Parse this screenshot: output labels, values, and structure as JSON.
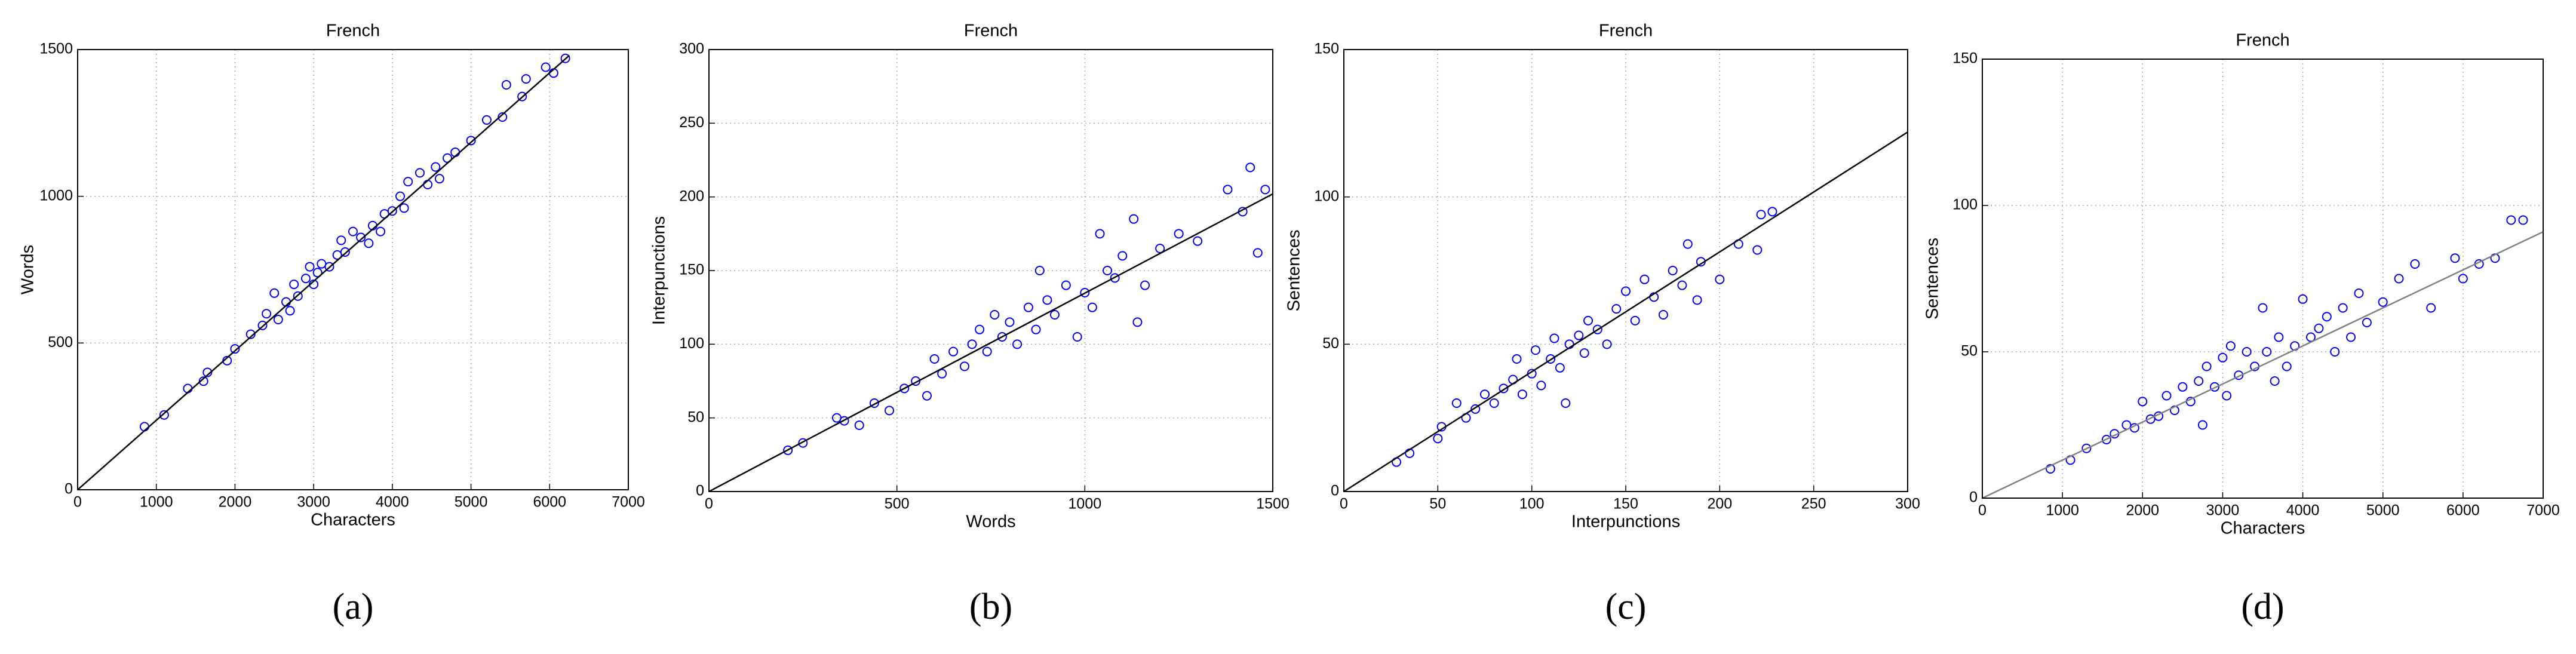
{
  "chart_data": [
    {
      "type": "scatter",
      "title": "French",
      "xlabel": "Characters",
      "ylabel": "Words",
      "panel_label": "(a)",
      "xlim": [
        0,
        7000
      ],
      "ylim": [
        0,
        1500
      ],
      "xticks": [
        0,
        1000,
        2000,
        3000,
        4000,
        5000,
        6000,
        7000
      ],
      "yticks": [
        0,
        500,
        1000,
        1500
      ],
      "grid": true,
      "series": [
        {
          "color": "#0000ff",
          "x": [
            850,
            1100,
            1400,
            1600,
            1650,
            1900,
            2000,
            2200,
            2350,
            2400,
            2500,
            2550,
            2650,
            2700,
            2750,
            2800,
            2900,
            2950,
            3000,
            3050,
            3100,
            3200,
            3300,
            3350,
            3400,
            3500,
            3600,
            3700,
            3750,
            3850,
            3900,
            4000,
            4100,
            4150,
            4200,
            4350,
            4450,
            4550,
            4600,
            4700,
            4800,
            5000,
            5200,
            5400,
            5450,
            5650,
            5700,
            5950,
            6050,
            6200
          ],
          "y": [
            215,
            255,
            345,
            370,
            400,
            440,
            480,
            530,
            560,
            600,
            670,
            580,
            640,
            610,
            700,
            660,
            720,
            760,
            700,
            740,
            770,
            760,
            800,
            850,
            810,
            880,
            860,
            840,
            900,
            880,
            940,
            950,
            1000,
            960,
            1050,
            1080,
            1040,
            1100,
            1060,
            1130,
            1150,
            1190,
            1260,
            1270,
            1380,
            1340,
            1400,
            1440,
            1420,
            1470
          ]
        },
        {
          "type": "line",
          "color": "#000000",
          "x": [
            0,
            6250
          ],
          "y": [
            0,
            1480
          ]
        }
      ]
    },
    {
      "type": "scatter",
      "title": "French",
      "xlabel": "Words",
      "ylabel": "Interpunctions",
      "panel_label": "(b)",
      "xlim": [
        0,
        1500
      ],
      "ylim": [
        0,
        300
      ],
      "xticks": [
        0,
        500,
        1000,
        1500
      ],
      "yticks": [
        0,
        50,
        100,
        150,
        200,
        250,
        300
      ],
      "grid": true,
      "series": [
        {
          "color": "#0000ff",
          "x": [
            210,
            250,
            340,
            360,
            400,
            440,
            480,
            520,
            550,
            580,
            600,
            620,
            650,
            680,
            700,
            720,
            740,
            760,
            780,
            800,
            820,
            850,
            870,
            880,
            900,
            920,
            950,
            980,
            1000,
            1020,
            1040,
            1060,
            1080,
            1100,
            1130,
            1140,
            1160,
            1200,
            1250,
            1300,
            1380,
            1420,
            1440,
            1460,
            1480
          ],
          "y": [
            28,
            33,
            50,
            48,
            45,
            60,
            55,
            70,
            75,
            65,
            90,
            80,
            95,
            85,
            100,
            110,
            95,
            120,
            105,
            115,
            100,
            125,
            110,
            150,
            130,
            120,
            140,
            105,
            135,
            125,
            175,
            150,
            145,
            160,
            185,
            115,
            140,
            165,
            175,
            170,
            205,
            190,
            220,
            162,
            205
          ]
        },
        {
          "type": "line",
          "color": "#000000",
          "x": [
            0,
            1500
          ],
          "y": [
            0,
            202
          ]
        }
      ]
    },
    {
      "type": "scatter",
      "title": "French",
      "xlabel": "Interpunctions",
      "ylabel": "Sentences",
      "panel_label": "(c)",
      "xlim": [
        0,
        300
      ],
      "ylim": [
        0,
        150
      ],
      "xticks": [
        0,
        50,
        100,
        150,
        200,
        250,
        300
      ],
      "yticks": [
        0,
        50,
        100,
        150
      ],
      "grid": true,
      "series": [
        {
          "color": "#0000ff",
          "x": [
            28,
            35,
            50,
            52,
            60,
            65,
            70,
            75,
            80,
            85,
            90,
            92,
            95,
            100,
            102,
            105,
            110,
            112,
            115,
            118,
            120,
            125,
            128,
            130,
            135,
            140,
            145,
            150,
            155,
            160,
            165,
            170,
            175,
            180,
            183,
            188,
            190,
            200,
            210,
            220,
            222,
            228
          ],
          "y": [
            10,
            13,
            18,
            22,
            30,
            25,
            28,
            33,
            30,
            35,
            38,
            45,
            33,
            40,
            48,
            36,
            45,
            52,
            42,
            30,
            50,
            53,
            47,
            58,
            55,
            50,
            62,
            68,
            58,
            72,
            66,
            60,
            75,
            70,
            84,
            65,
            78,
            72,
            84,
            82,
            94,
            95
          ]
        },
        {
          "type": "line",
          "color": "#000000",
          "x": [
            0,
            300
          ],
          "y": [
            0,
            122
          ]
        }
      ]
    },
    {
      "type": "scatter",
      "title": "French",
      "xlabel": "Characters",
      "ylabel": "Sentences",
      "panel_label": "(d)",
      "xlim": [
        0,
        7000
      ],
      "ylim": [
        0,
        150
      ],
      "xticks": [
        0,
        1000,
        2000,
        3000,
        4000,
        5000,
        6000,
        7000
      ],
      "yticks": [
        0,
        50,
        100,
        150
      ],
      "grid": true,
      "series": [
        {
          "color": "#0000ff",
          "x": [
            850,
            1100,
            1300,
            1550,
            1650,
            1800,
            1900,
            2000,
            2100,
            2200,
            2300,
            2400,
            2500,
            2600,
            2700,
            2750,
            2800,
            2900,
            3000,
            3050,
            3100,
            3200,
            3300,
            3400,
            3500,
            3550,
            3650,
            3700,
            3800,
            3900,
            4000,
            4100,
            4200,
            4300,
            4400,
            4500,
            4600,
            4700,
            4800,
            5000,
            5200,
            5400,
            5600,
            5900,
            6000,
            6200,
            6400,
            6600,
            6750
          ],
          "y": [
            10,
            13,
            17,
            20,
            22,
            25,
            24,
            33,
            27,
            28,
            35,
            30,
            38,
            33,
            40,
            25,
            45,
            38,
            48,
            35,
            52,
            42,
            50,
            45,
            65,
            50,
            40,
            55,
            45,
            52,
            68,
            55,
            58,
            62,
            50,
            65,
            55,
            70,
            60,
            67,
            75,
            80,
            65,
            82,
            75,
            80,
            82,
            95,
            95
          ]
        },
        {
          "type": "line",
          "color": "#808080",
          "x": [
            0,
            7000
          ],
          "y": [
            0,
            91
          ]
        }
      ]
    }
  ]
}
